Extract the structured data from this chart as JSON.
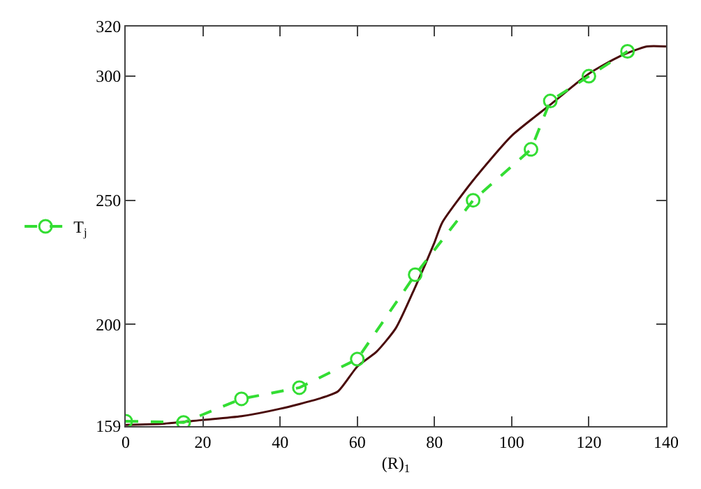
{
  "chart_data": {
    "type": "line",
    "xlabel": "(R)$_{1}$",
    "series": [
      {
        "color": "#4a0a0a",
        "x": [
          0,
          10,
          20,
          30,
          40,
          50,
          55,
          60,
          65,
          70,
          75,
          80,
          82,
          90,
          100,
          110,
          120,
          128,
          135,
          140
        ],
        "values": [
          159.5,
          160,
          161.5,
          163,
          166,
          170,
          173,
          183,
          189,
          198.5,
          215,
          233,
          241,
          258,
          276,
          288.5,
          301,
          308,
          312,
          312
        ],
        "marker": "none",
        "line_style": "solid"
      },
      {
        "name": "T$_{j}$",
        "color": "#33dd33",
        "x": [
          0,
          15,
          30,
          45,
          60,
          75,
          90,
          105,
          110,
          120,
          130
        ],
        "values": [
          161,
          160.5,
          170,
          174.5,
          186,
          220,
          250,
          270.5,
          290,
          300,
          310
        ],
        "marker": "circle",
        "line_style": "dashed"
      }
    ],
    "xlim": [
      0,
      140
    ],
    "xticks": [
      0,
      20,
      40,
      60,
      80,
      100,
      120,
      140
    ],
    "ylim": [
      159,
      320
    ],
    "yticks": [
      159,
      200,
      250,
      300,
      320
    ],
    "legend": "left"
  }
}
